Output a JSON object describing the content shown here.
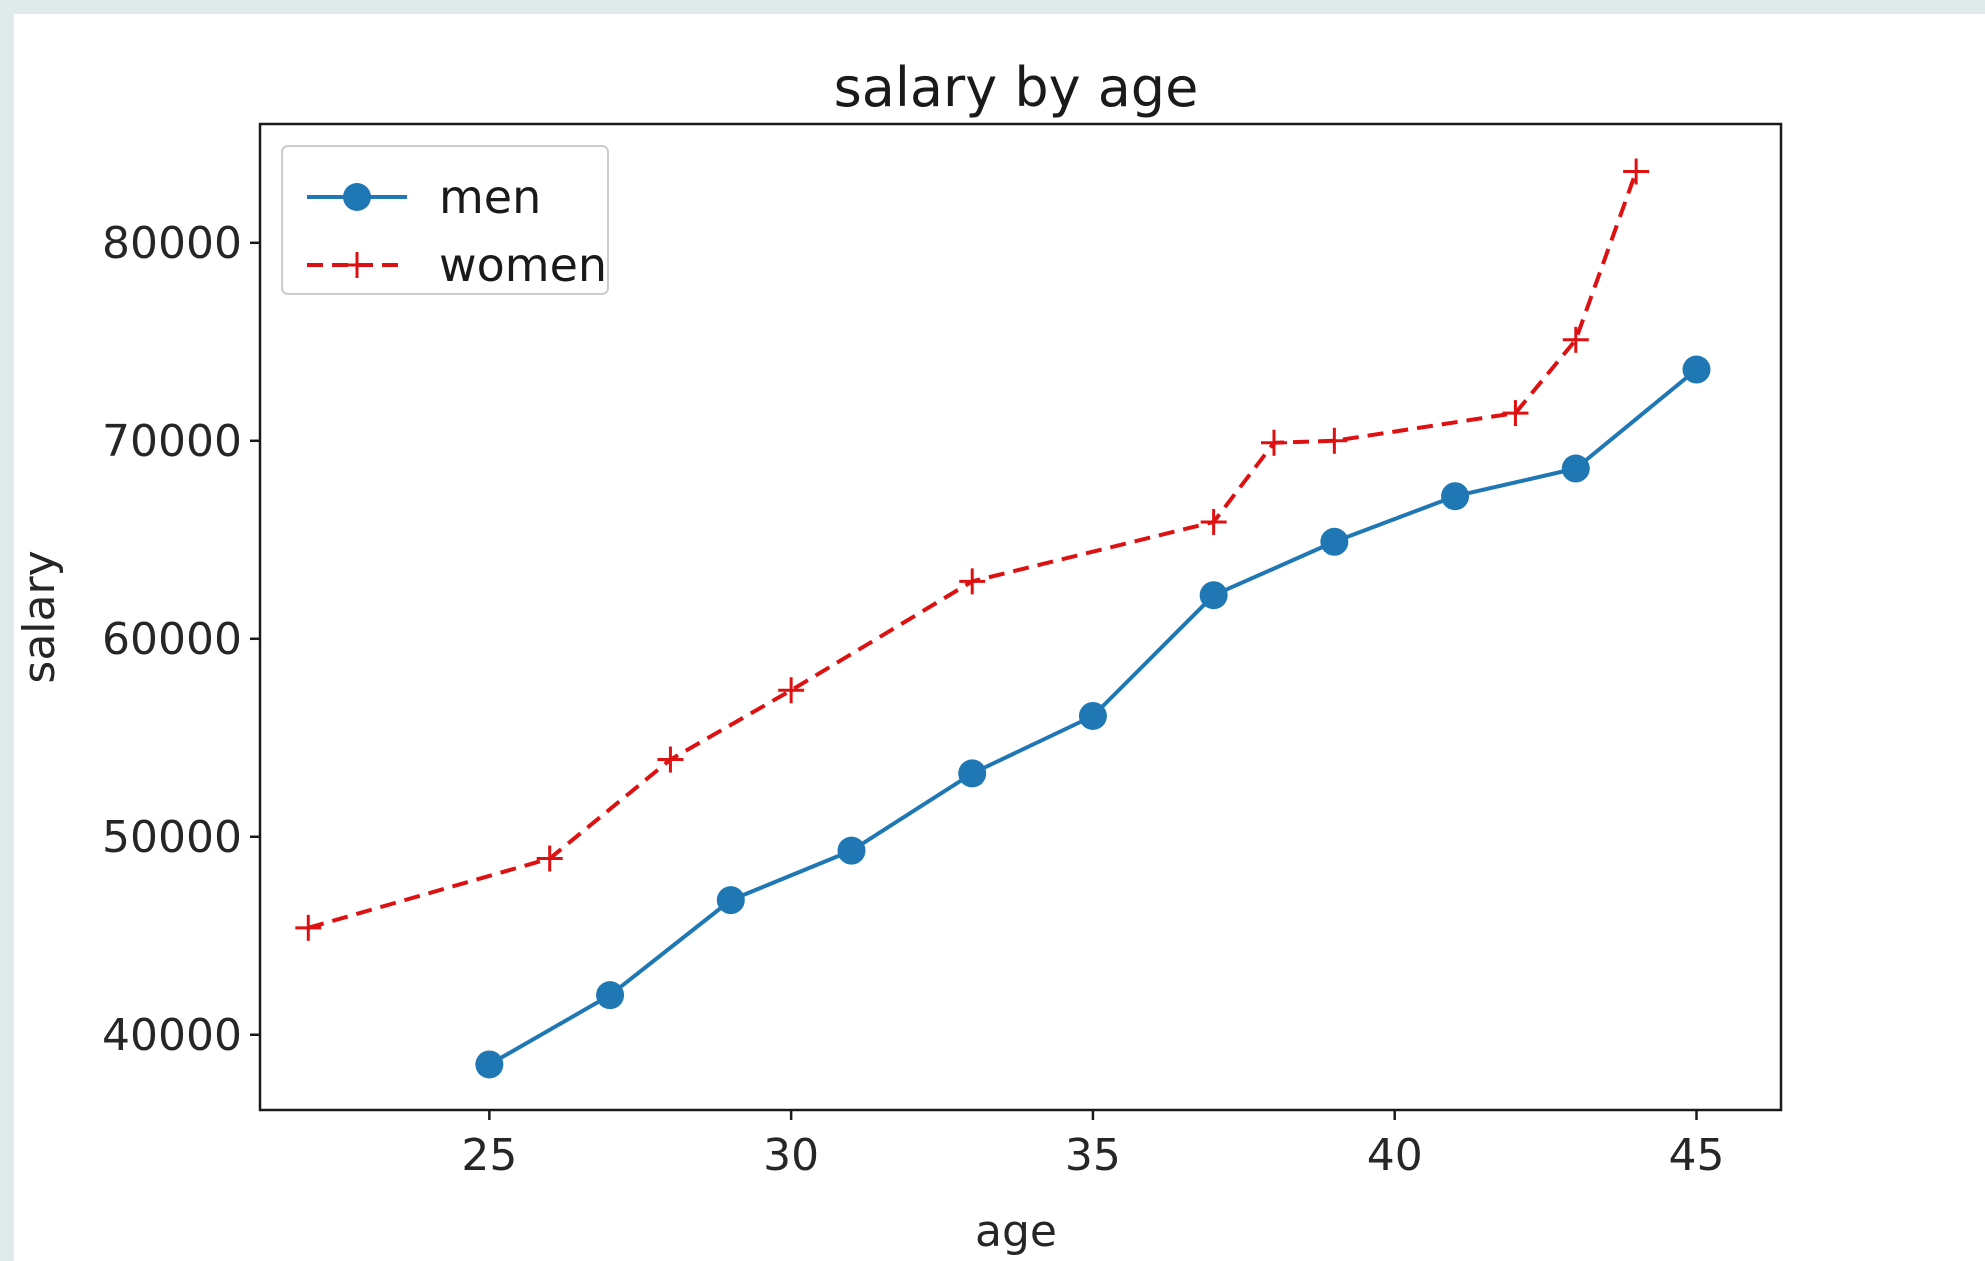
{
  "chart_data": {
    "type": "line",
    "title": "salary by age",
    "xlabel": "age",
    "ylabel": "salary",
    "xlim": [
      21.2,
      46.4
    ],
    "ylim": [
      36200,
      86000
    ],
    "xticks": [
      25,
      30,
      35,
      40,
      45
    ],
    "yticks": [
      40000,
      50000,
      60000,
      70000,
      80000
    ],
    "grid": false,
    "legend_position": "upper-left",
    "series": [
      {
        "name": "men",
        "color": "#1f77b4",
        "linestyle": "solid",
        "marker": "circle",
        "points": [
          {
            "x": 25,
            "y": 38500
          },
          {
            "x": 27,
            "y": 42000
          },
          {
            "x": 29,
            "y": 46800
          },
          {
            "x": 31,
            "y": 49300
          },
          {
            "x": 33,
            "y": 53200
          },
          {
            "x": 35,
            "y": 56100
          },
          {
            "x": 37,
            "y": 62200
          },
          {
            "x": 39,
            "y": 64900
          },
          {
            "x": 41,
            "y": 67200
          },
          {
            "x": 43,
            "y": 68600
          },
          {
            "x": 45,
            "y": 73600
          }
        ]
      },
      {
        "name": "women",
        "color": "#dd1111",
        "linestyle": "dashed",
        "marker": "plus",
        "points": [
          {
            "x": 22,
            "y": 45400
          },
          {
            "x": 26,
            "y": 48900
          },
          {
            "x": 28,
            "y": 53900
          },
          {
            "x": 30,
            "y": 57400
          },
          {
            "x": 33,
            "y": 62900
          },
          {
            "x": 37,
            "y": 65900
          },
          {
            "x": 38,
            "y": 69900
          },
          {
            "x": 39,
            "y": 70000
          },
          {
            "x": 42,
            "y": 71400
          },
          {
            "x": 43,
            "y": 75100
          },
          {
            "x": 44,
            "y": 83600
          }
        ]
      }
    ]
  }
}
